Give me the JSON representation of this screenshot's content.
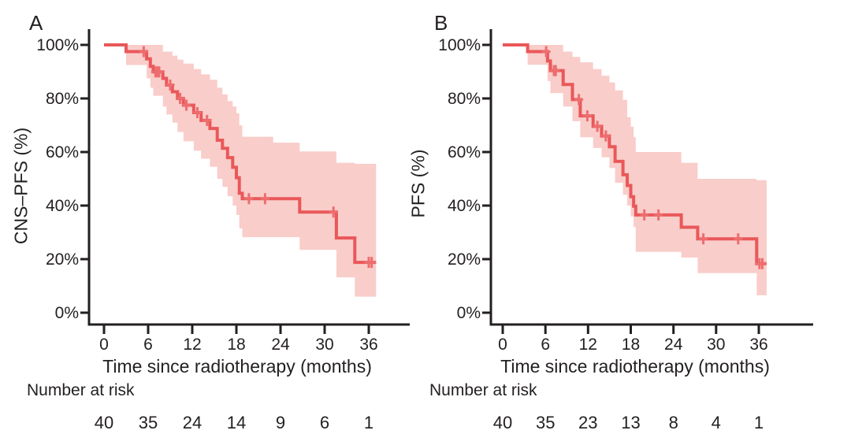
{
  "figure_background": "#ffffff",
  "colors": {
    "curve": "#e9585a",
    "band": "#f9cdca",
    "censor": "#ee6d6f",
    "axis": "#231f20",
    "text": "#231f20"
  },
  "chart_data": [
    {
      "type": "line",
      "subtype": "kaplan-meier-step-with-confidence-band",
      "panel_label": "A",
      "title": "",
      "xlabel": "Time since radiotherapy (months)",
      "ylabel": "CNS–PFS (%)",
      "xlim": [
        0,
        39
      ],
      "ylim": [
        0,
        100
      ],
      "grid": false,
      "legend": "none",
      "x_ticks": [
        0,
        6,
        12,
        18,
        24,
        30,
        36
      ],
      "y_ticks": [
        0,
        20,
        40,
        60,
        80,
        100
      ],
      "y_tick_labels": [
        "0%",
        "20%",
        "40%",
        "60%",
        "80%",
        "100%"
      ],
      "km_steps": [
        [
          0,
          100
        ],
        [
          3,
          97.5
        ],
        [
          5.8,
          94.8
        ],
        [
          6.3,
          92
        ],
        [
          6.7,
          89.9
        ],
        [
          8,
          87.5
        ],
        [
          8.5,
          85
        ],
        [
          9.3,
          82.5
        ],
        [
          10,
          80
        ],
        [
          10.8,
          77.5
        ],
        [
          12.2,
          74.7
        ],
        [
          13.2,
          71.8
        ],
        [
          14.4,
          68.8
        ],
        [
          15.4,
          64.4
        ],
        [
          16.1,
          61.4
        ],
        [
          16.8,
          57.9
        ],
        [
          17.5,
          54.3
        ],
        [
          18,
          50.4
        ],
        [
          18.4,
          44.6
        ],
        [
          18.8,
          42.6
        ],
        [
          26.6,
          37.6
        ],
        [
          31.6,
          27.9
        ],
        [
          34.1,
          18.8
        ],
        [
          37,
          18.8
        ]
      ],
      "censor_marks": [
        [
          5.4,
          97.5
        ],
        [
          7.0,
          89.9
        ],
        [
          7.25,
          89.9
        ],
        [
          7.5,
          89.9
        ],
        [
          9,
          85
        ],
        [
          10.35,
          80
        ],
        [
          11.2,
          77.5
        ],
        [
          12.7,
          74.7
        ],
        [
          14,
          71.8
        ],
        [
          19.7,
          42.6
        ],
        [
          21.9,
          42.6
        ],
        [
          31.2,
          37.6
        ],
        [
          36.0,
          18.8
        ],
        [
          36.4,
          18.8
        ]
      ],
      "ci_upper": [
        [
          3,
          100
        ],
        [
          8,
          97.5
        ],
        [
          9.3,
          96
        ],
        [
          10,
          94.5
        ],
        [
          10.8,
          93
        ],
        [
          12.2,
          91
        ],
        [
          13.2,
          89
        ],
        [
          14.4,
          87
        ],
        [
          15.4,
          84
        ],
        [
          16.1,
          81.5
        ],
        [
          16.8,
          79
        ],
        [
          17.5,
          77
        ],
        [
          18,
          74.5
        ],
        [
          18.4,
          70
        ],
        [
          18.8,
          65.7
        ],
        [
          23,
          63.5
        ],
        [
          26.6,
          60.2
        ],
        [
          31.6,
          56
        ],
        [
          34.1,
          55.6
        ],
        [
          37,
          55.6
        ]
      ],
      "ci_lower": [
        [
          3,
          92.5
        ],
        [
          5.8,
          87.5
        ],
        [
          6.3,
          84
        ],
        [
          6.7,
          81
        ],
        [
          8,
          77
        ],
        [
          8.5,
          74
        ],
        [
          9.3,
          71
        ],
        [
          10,
          67.5
        ],
        [
          10.8,
          64
        ],
        [
          12.2,
          60.5
        ],
        [
          13.2,
          57.5
        ],
        [
          14.4,
          54.5
        ],
        [
          15.4,
          50
        ],
        [
          16.1,
          47
        ],
        [
          16.8,
          43.5
        ],
        [
          17.5,
          40
        ],
        [
          18,
          36.5
        ],
        [
          18.4,
          31.5
        ],
        [
          18.8,
          28.2
        ],
        [
          26.6,
          23.5
        ],
        [
          31.6,
          13.2
        ],
        [
          34.1,
          6
        ],
        [
          37,
          6
        ]
      ],
      "number_at_risk": {
        "label": "Number at risk",
        "times": [
          0,
          6,
          12,
          18,
          24,
          30,
          36
        ],
        "counts": [
          40,
          35,
          24,
          14,
          9,
          6,
          1
        ]
      }
    },
    {
      "type": "line",
      "subtype": "kaplan-meier-step-with-confidence-band",
      "panel_label": "B",
      "title": "",
      "xlabel": "Time since radiotherapy (months)",
      "ylabel": "PFS (%)",
      "xlim": [
        0,
        39
      ],
      "ylim": [
        0,
        100
      ],
      "grid": false,
      "legend": "none",
      "x_ticks": [
        0,
        6,
        12,
        18,
        24,
        30,
        36
      ],
      "y_ticks": [
        0,
        20,
        40,
        60,
        80,
        100
      ],
      "y_tick_labels": [
        "0%",
        "20%",
        "40%",
        "60%",
        "80%",
        "100%"
      ],
      "km_steps": [
        [
          0,
          100
        ],
        [
          3.5,
          97.5
        ],
        [
          6.3,
          94
        ],
        [
          6.7,
          90.4
        ],
        [
          8.5,
          85.2
        ],
        [
          9.8,
          79.6
        ],
        [
          10.9,
          73.5
        ],
        [
          12.7,
          69.6
        ],
        [
          13.9,
          66
        ],
        [
          15,
          62
        ],
        [
          15.8,
          56.5
        ],
        [
          16.9,
          51.5
        ],
        [
          17.5,
          47.5
        ],
        [
          18,
          43.3
        ],
        [
          18.4,
          39.8
        ],
        [
          18.7,
          36.5
        ],
        [
          25.1,
          31.9
        ],
        [
          27.4,
          27.6
        ],
        [
          35.7,
          18.3
        ],
        [
          37.1,
          18.3
        ]
      ],
      "censor_marks": [
        [
          6.1,
          97.5
        ],
        [
          7.2,
          90.4
        ],
        [
          7.45,
          90.4
        ],
        [
          10.7,
          79.6
        ],
        [
          11.9,
          73.5
        ],
        [
          13.3,
          69.6
        ],
        [
          14.5,
          66
        ],
        [
          19.9,
          36.5
        ],
        [
          21.9,
          36.5
        ],
        [
          28.2,
          27.6
        ],
        [
          33.1,
          27.6
        ],
        [
          36.1,
          18.3
        ],
        [
          36.5,
          18.3
        ]
      ],
      "ci_upper": [
        [
          3.5,
          100
        ],
        [
          8.5,
          97.5
        ],
        [
          9.8,
          95.5
        ],
        [
          10.9,
          93.5
        ],
        [
          12.7,
          91
        ],
        [
          13.9,
          88.5
        ],
        [
          15,
          86
        ],
        [
          15.8,
          83
        ],
        [
          16.9,
          79.5
        ],
        [
          17.5,
          73
        ],
        [
          18,
          69.5
        ],
        [
          18.4,
          65.5
        ],
        [
          18.7,
          60
        ],
        [
          25.1,
          56
        ],
        [
          27.4,
          50
        ],
        [
          35.7,
          49.5
        ],
        [
          37.1,
          49.5
        ]
      ],
      "ci_lower": [
        [
          3.5,
          92.6
        ],
        [
          6.3,
          86.5
        ],
        [
          6.7,
          82
        ],
        [
          8.5,
          77
        ],
        [
          9.8,
          71.5
        ],
        [
          10.9,
          65.5
        ],
        [
          12.7,
          61.5
        ],
        [
          13.9,
          58
        ],
        [
          15,
          54
        ],
        [
          15.8,
          48.5
        ],
        [
          16.9,
          44
        ],
        [
          17.5,
          40
        ],
        [
          18,
          36
        ],
        [
          18.4,
          32
        ],
        [
          18.7,
          22.7
        ],
        [
          25.1,
          20.6
        ],
        [
          27.4,
          14.8
        ],
        [
          35.7,
          6.5
        ],
        [
          37.1,
          6.5
        ]
      ],
      "number_at_risk": {
        "label": "Number at risk",
        "times": [
          0,
          6,
          12,
          18,
          24,
          30,
          36
        ],
        "counts": [
          40,
          35,
          23,
          13,
          8,
          4,
          1
        ]
      }
    }
  ]
}
